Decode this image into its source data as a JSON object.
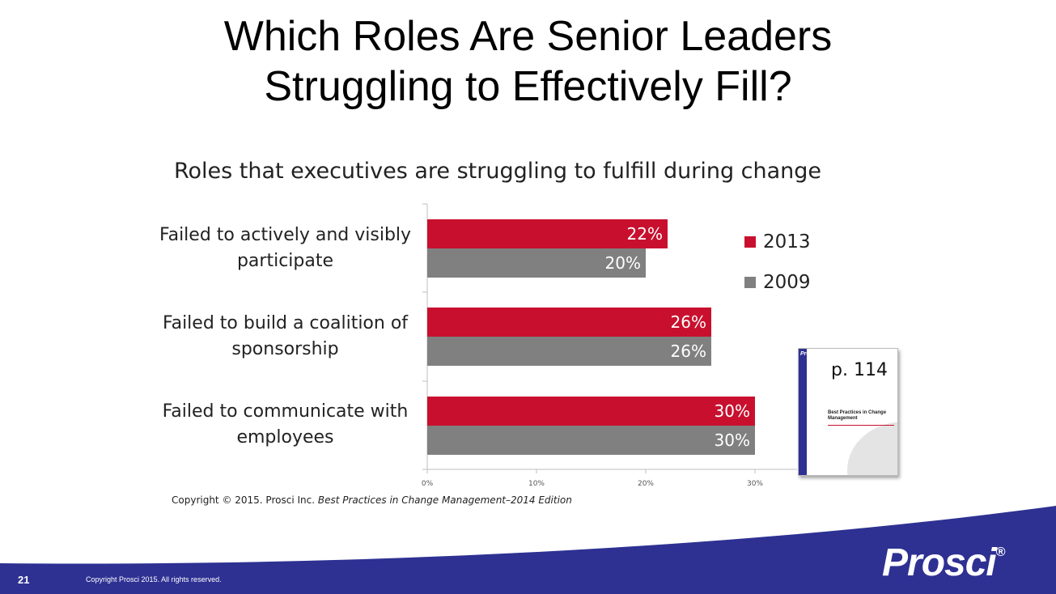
{
  "slide": {
    "title_line1": "Which Roles Are Senior Leaders",
    "title_line2": "Struggling to Effectively Fill?",
    "number": "21",
    "footer_copyright": "Copyright Prosci 2015. All rights reserved.",
    "logo": "Prosci",
    "logo_mark": "®"
  },
  "chart_data": {
    "type": "bar",
    "orientation": "horizontal",
    "title": "Roles that executives are struggling to fulfill during change",
    "categories": [
      [
        "Failed to actively and visibly",
        "participate"
      ],
      [
        "Failed to build a coalition of",
        "sponsorship"
      ],
      [
        "Failed to communicate with",
        "employees"
      ]
    ],
    "series": [
      {
        "name": "2013",
        "color": "#c8102e",
        "values": [
          22,
          26,
          30
        ],
        "labels": [
          "22%",
          "26%",
          "30%"
        ]
      },
      {
        "name": "2009",
        "color": "#808080",
        "values": [
          20,
          26,
          30
        ],
        "labels": [
          "20%",
          "26%",
          "30%"
        ]
      }
    ],
    "xlim": [
      0,
      33
    ],
    "ticks": [
      0,
      10,
      20,
      30
    ],
    "tick_labels": [
      "0%",
      "10%",
      "20%",
      "30%"
    ],
    "legend_position": "right",
    "grid": false
  },
  "source": {
    "prefix": "Copyright © 2015. Prosci Inc. ",
    "title": "Best Practices in Change Management–2014 Edition"
  },
  "book": {
    "page_label": "p. 114",
    "brand": "Prosci",
    "title": "Best Practices in Change Management"
  },
  "colors": {
    "red": "#c8102e",
    "gray": "#808080",
    "footer_navy": "#2e3192"
  }
}
